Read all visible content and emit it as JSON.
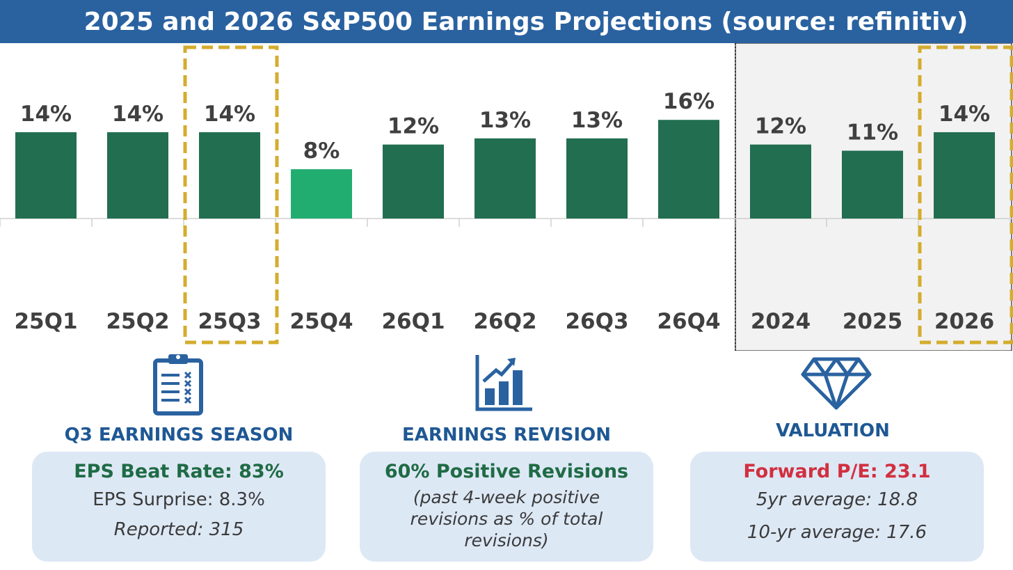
{
  "header": {
    "title": "2025 and 2026 S&P500 Earnings Projections (source: refinitiv)"
  },
  "chart_data": {
    "type": "bar",
    "categories": [
      "25Q1",
      "25Q2",
      "25Q3",
      "25Q4",
      "26Q1",
      "26Q2",
      "26Q3",
      "26Q4",
      "2024",
      "2025",
      "2026"
    ],
    "values": [
      14,
      14,
      14,
      8,
      12,
      13,
      13,
      16,
      12,
      11,
      14
    ],
    "value_labels": [
      "14%",
      "14%",
      "14%",
      "8%",
      "12%",
      "13%",
      "13%",
      "16%",
      "12%",
      "11%",
      "14%"
    ],
    "unit": "%",
    "highlighted_categories": [
      "25Q3",
      "2026"
    ],
    "annual_group": [
      "2024",
      "2025",
      "2026"
    ],
    "grid": false,
    "legend": "none",
    "colors": {
      "bar": "#226e50",
      "bar_lowlight": "#22ad70",
      "highlight_box": "#d4ac2e",
      "annual_shade": "#f2f2f2"
    }
  },
  "panels": [
    {
      "heading": "Q3 EARNINGS SEASON",
      "icon": "clipboard-checklist-icon",
      "headline": "EPS Beat Rate: 83%",
      "headline_color": "#1f6b45",
      "lines": [
        "EPS Surprise: 8.3%",
        "Reported: 315"
      ]
    },
    {
      "heading": "EARNINGS REVISION",
      "icon": "rising-bar-chart-icon",
      "headline": "60% Positive Revisions",
      "headline_color": "#1f6b45",
      "note": "(past 4-week positive revisions as % of total revisions)"
    },
    {
      "heading": "VALUATION",
      "icon": "diamond-icon",
      "headline": "Forward P/E: 23.1",
      "headline_color": "#d22f3f",
      "lines": [
        "5yr average: 18.8",
        "10-yr average: 17.6"
      ]
    }
  ],
  "colors": {
    "title_bar": "#2a62a0",
    "heading": "#1f5894",
    "card_bg": "#dde8f5",
    "icon": "#2a62a0"
  }
}
